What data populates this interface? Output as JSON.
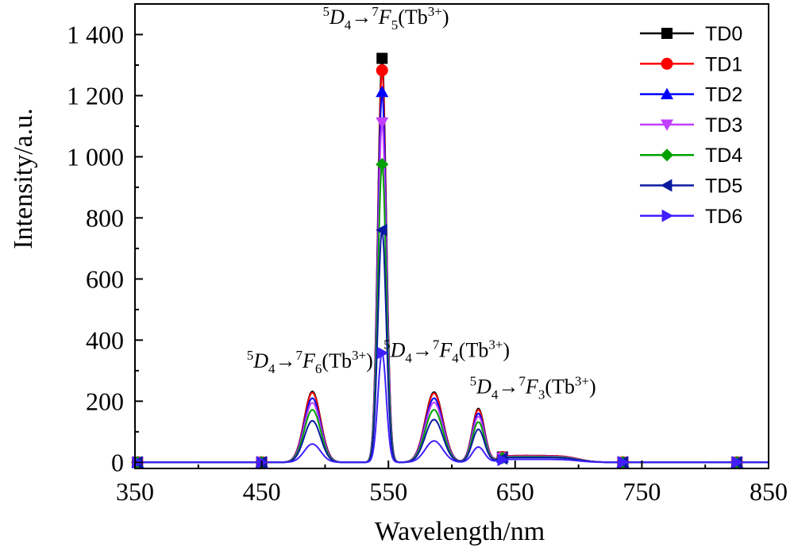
{
  "chart_data": {
    "type": "line",
    "xlabel": "Wavelength/nm",
    "ylabel": "Intensity/a.u.",
    "xlim": [
      350,
      850
    ],
    "ylim": [
      -20,
      1500
    ],
    "x_ticks": [
      350,
      450,
      550,
      650,
      750,
      850
    ],
    "x_tick_labels": [
      "350",
      "450",
      "550",
      "650",
      "750",
      "850"
    ],
    "y_ticks": [
      0,
      200,
      400,
      600,
      800,
      1000,
      1200,
      1400
    ],
    "y_tick_labels": [
      "0",
      "200",
      "400",
      "600",
      "800",
      "1 000",
      "1 200",
      "1 400"
    ],
    "grid": false,
    "legend_position": "top-right",
    "annotations": [
      {
        "sup1": "5",
        "D": "D",
        "sub1": "4",
        "arrow": "→",
        "sup2": "7",
        "F": "F",
        "sub2": "5",
        "ion": "(Tb",
        "ion_sup": "3+",
        "close": ")",
        "x": 548,
        "y": 1435
      },
      {
        "sup1": "5",
        "D": "D",
        "sub1": "4",
        "arrow": "→",
        "sup2": "7",
        "F": "F",
        "sub2": "6",
        "ion": "(Tb",
        "ion_sup": "3+",
        "close": ")",
        "x": 488,
        "y": 310
      },
      {
        "sup1": "5",
        "D": "D",
        "sub1": "4",
        "arrow": "→",
        "sup2": "7",
        "F": "F",
        "sub2": "4",
        "ion": "(Tb",
        "ion_sup": "3+",
        "close": ")",
        "x": 596,
        "y": 345
      },
      {
        "sup1": "5",
        "D": "D",
        "sub1": "4",
        "arrow": "→",
        "sup2": "7",
        "F": "F",
        "sub2": "3",
        "ion": "(Tb",
        "ion_sup": "3+",
        "close": ")",
        "x": 664,
        "y": 225
      }
    ],
    "marker_x": [
      352,
      450,
      545,
      640,
      735,
      825
    ],
    "series": [
      {
        "name": "TD0",
        "color": "#000000",
        "marker": "square",
        "peaks": [
          232,
          1322,
          230,
          176
        ],
        "tail": 22
      },
      {
        "name": "TD1",
        "color": "#ff0000",
        "marker": "circle",
        "peaks": [
          228,
          1283,
          226,
          172
        ],
        "tail": 22
      },
      {
        "name": "TD2",
        "color": "#0000ff",
        "marker": "triangle-up",
        "peaks": [
          210,
          1212,
          210,
          160
        ],
        "tail": 20
      },
      {
        "name": "TD3",
        "color": "#c040ff",
        "marker": "triangle-down",
        "peaks": [
          195,
          1112,
          196,
          150
        ],
        "tail": 20
      },
      {
        "name": "TD4",
        "color": "#00a000",
        "marker": "diamond",
        "peaks": [
          172,
          975,
          172,
          132
        ],
        "tail": 18
      },
      {
        "name": "TD5",
        "color": "#0a1aa0",
        "marker": "triangle-left",
        "peaks": [
          136,
          760,
          140,
          108
        ],
        "tail": 16
      },
      {
        "name": "TD6",
        "color": "#4020ff",
        "marker": "triangle-right",
        "peaks": [
          60,
          358,
          70,
          50
        ],
        "tail": 10
      }
    ]
  }
}
